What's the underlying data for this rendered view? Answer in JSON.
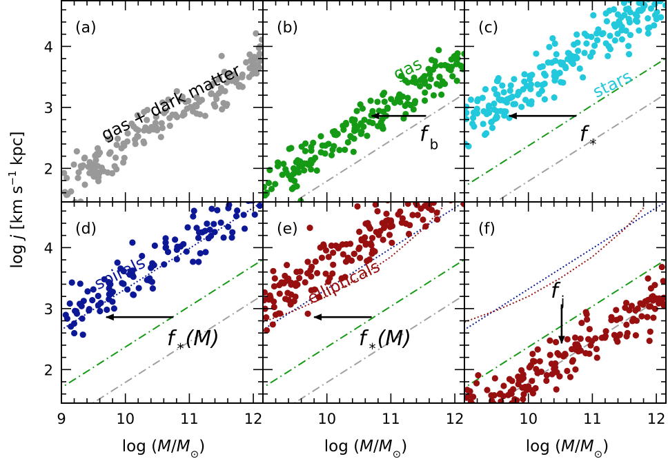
{
  "axes": {
    "xlabel": "log (M/M⊙)",
    "xlabel_parts": {
      "prefix": "log (",
      "var": "M",
      "slash": "/",
      "var2": "M",
      "sub": "⊙",
      "suffix": ")"
    },
    "ylabel": "log j [km s⁻¹ kpc]",
    "ylabel_parts": {
      "prefix": "log ",
      "var": "j",
      "suffix": " [km s",
      "sup": "−1",
      "suffix2": " kpc]"
    },
    "xlim": [
      9.0,
      12.15
    ],
    "ylim": [
      1.45,
      4.75
    ],
    "xticks": [
      "9",
      "10",
      "11",
      "12"
    ],
    "yticks": [
      "2",
      "3",
      "4"
    ]
  },
  "colors": {
    "gray": "#999999",
    "green": "#159a15",
    "cyan": "#22c8dc",
    "blue": "#0c1896",
    "red": "#970f0f",
    "gray_line": "#a0a0a0",
    "green_line": "#159a15",
    "blue_line": "#0c1896",
    "red_line": "#970f0f"
  },
  "panels": [
    {
      "id": "a",
      "label": "(a)",
      "annotation": "gas + dark matter",
      "annotation_color": "#000000"
    },
    {
      "id": "b",
      "label": "(b)",
      "annotation": "gas",
      "annotation_color": "#159a15",
      "arrow_label": "f",
      "arrow_sub": "b"
    },
    {
      "id": "c",
      "label": "(c)",
      "annotation": "stars",
      "annotation_color": "#22c8dc",
      "arrow_label": "f",
      "arrow_sub": "*"
    },
    {
      "id": "d",
      "label": "(d)",
      "annotation": "spirals",
      "annotation_color": "#0c1896",
      "arrow_label": "f",
      "arrow_sub": "*",
      "arrow_suffix": "(M)"
    },
    {
      "id": "e",
      "label": "(e)",
      "annotation": "ellipticals",
      "annotation_color": "#970f0f",
      "arrow_label": "f",
      "arrow_sub": "*",
      "arrow_suffix": "(M)"
    },
    {
      "id": "f",
      "label": "(f)",
      "arrow_label": "f",
      "arrow_sub": "j"
    }
  ],
  "chart_data": {
    "type": "scatter",
    "layout": "2x3 panel grid",
    "shared_axes": true,
    "lines": {
      "gray_dashdot": {
        "slope": 0.667,
        "intercept": -4.88,
        "style": "dash-dot"
      },
      "green_dashdot": {
        "slope": 0.667,
        "intercept": -4.3,
        "style": "dash-dot"
      },
      "blue_dotted": {
        "slope": 0.667,
        "intercept": -3.35,
        "style": "dotted",
        "note": "d-f"
      },
      "red_dotted_curve": {
        "x": [
          9.0,
          9.5,
          10.0,
          10.5,
          11.0,
          11.5,
          11.8
        ],
        "y": [
          2.78,
          2.97,
          3.2,
          3.5,
          3.85,
          4.3,
          4.65
        ],
        "style": "dotted"
      }
    },
    "series": [
      {
        "panel": "a",
        "color": "gray",
        "mean_intercept": -4.3,
        "scatter": 0.18,
        "count": 175
      },
      {
        "panel": "b",
        "color": "green",
        "mean_intercept": -4.3,
        "scatter": 0.18,
        "count": 185
      },
      {
        "panel": "c",
        "color": "cyan",
        "mean_intercept": -3.3,
        "scatter": 0.2,
        "count": 210
      },
      {
        "panel": "d",
        "color": "blue",
        "mean_intercept": -3.2,
        "scatter": 0.22,
        "count": 125
      },
      {
        "panel": "e",
        "color": "red",
        "mean_intercept": -2.95,
        "scatter": 0.22,
        "count": 200
      },
      {
        "panel": "f",
        "color": "red",
        "mean_intercept": -4.85,
        "scatter": 0.22,
        "count": 190
      }
    ],
    "arrows": [
      {
        "panel": "b",
        "from": [
          11.55,
          2.86
        ],
        "to": [
          10.7,
          2.86
        ]
      },
      {
        "panel": "c",
        "from": [
          10.75,
          2.86
        ],
        "to": [
          9.7,
          2.86
        ]
      },
      {
        "panel": "d",
        "from": [
          10.75,
          2.86
        ],
        "to": [
          9.7,
          2.86
        ]
      },
      {
        "panel": "e",
        "from": [
          10.7,
          2.86
        ],
        "to": [
          9.8,
          2.86
        ]
      },
      {
        "panel": "f",
        "from": [
          10.52,
          3.07
        ],
        "to": [
          10.52,
          2.43
        ]
      }
    ]
  }
}
